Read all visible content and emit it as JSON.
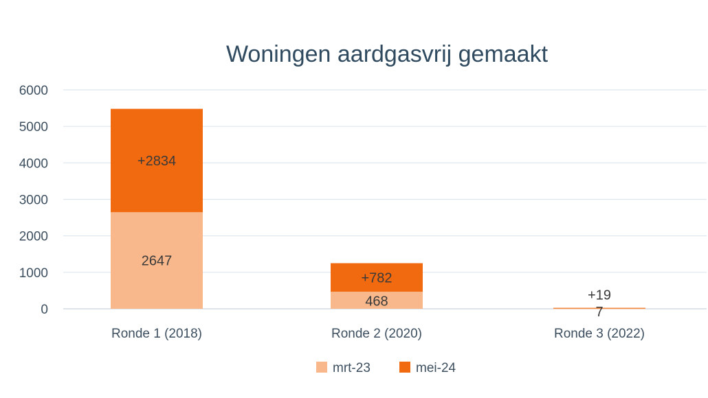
{
  "chart_data": {
    "type": "bar",
    "stacked": true,
    "title": "Woningen aardgasvrij gemaakt",
    "categories": [
      "Ronde 1 (2018)",
      "Ronde 2 (2020)",
      "Ronde 3 (2022)"
    ],
    "series": [
      {
        "name": "mrt-23",
        "values": [
          2647,
          468,
          7
        ],
        "labels": [
          "2647",
          "468",
          "7"
        ],
        "color": "#f8b88b"
      },
      {
        "name": "mei-24",
        "values": [
          2834,
          782,
          19
        ],
        "labels": [
          "+2834",
          "+782",
          "+19"
        ],
        "color": "#f26a0f"
      }
    ],
    "ylim": [
      0,
      6000
    ],
    "yticks": [
      0,
      1000,
      2000,
      3000,
      4000,
      5000,
      6000
    ],
    "grid": true,
    "legend_position": "bottom-center"
  }
}
